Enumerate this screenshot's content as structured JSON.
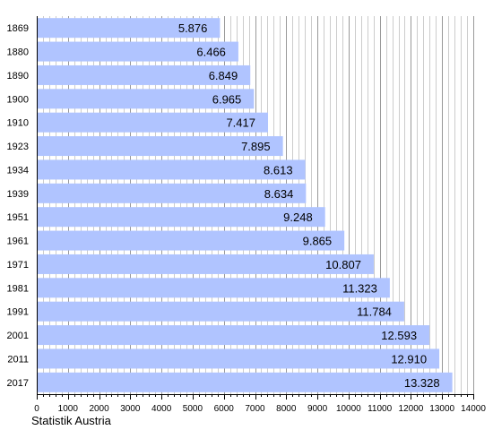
{
  "chart_data": {
    "type": "bar",
    "orientation": "horizontal",
    "categories": [
      "1869",
      "1880",
      "1890",
      "1900",
      "1910",
      "1923",
      "1934",
      "1939",
      "1951",
      "1961",
      "1971",
      "1981",
      "1991",
      "2001",
      "2011",
      "2017"
    ],
    "values": [
      5876,
      6466,
      6849,
      6965,
      7417,
      7895,
      8613,
      8634,
      9248,
      9865,
      10807,
      11323,
      11784,
      12593,
      12910,
      13328
    ],
    "value_labels": [
      "5.876",
      "6.466",
      "6.849",
      "6.965",
      "7.417",
      "7.895",
      "8.613",
      "8.634",
      "9.248",
      "9.865",
      "10.807",
      "11.323",
      "11.784",
      "12.593",
      "12.910",
      "13.328"
    ],
    "xlim": [
      0,
      14000
    ],
    "x_ticks": [
      0,
      1000,
      2000,
      3000,
      4000,
      5000,
      6000,
      7000,
      8000,
      9000,
      10000,
      11000,
      12000,
      13000,
      14000
    ],
    "x_tick_labels": [
      "0",
      "1000",
      "2000",
      "3000",
      "4000",
      "5000",
      "6000",
      "7000",
      "8000",
      "9000",
      "10000",
      "11000",
      "12000",
      "13000",
      "14000"
    ],
    "grid": true,
    "bar_color": "#b0c4ff",
    "title": "",
    "xlabel": "",
    "ylabel": ""
  },
  "source_label": "Statistik Austria"
}
